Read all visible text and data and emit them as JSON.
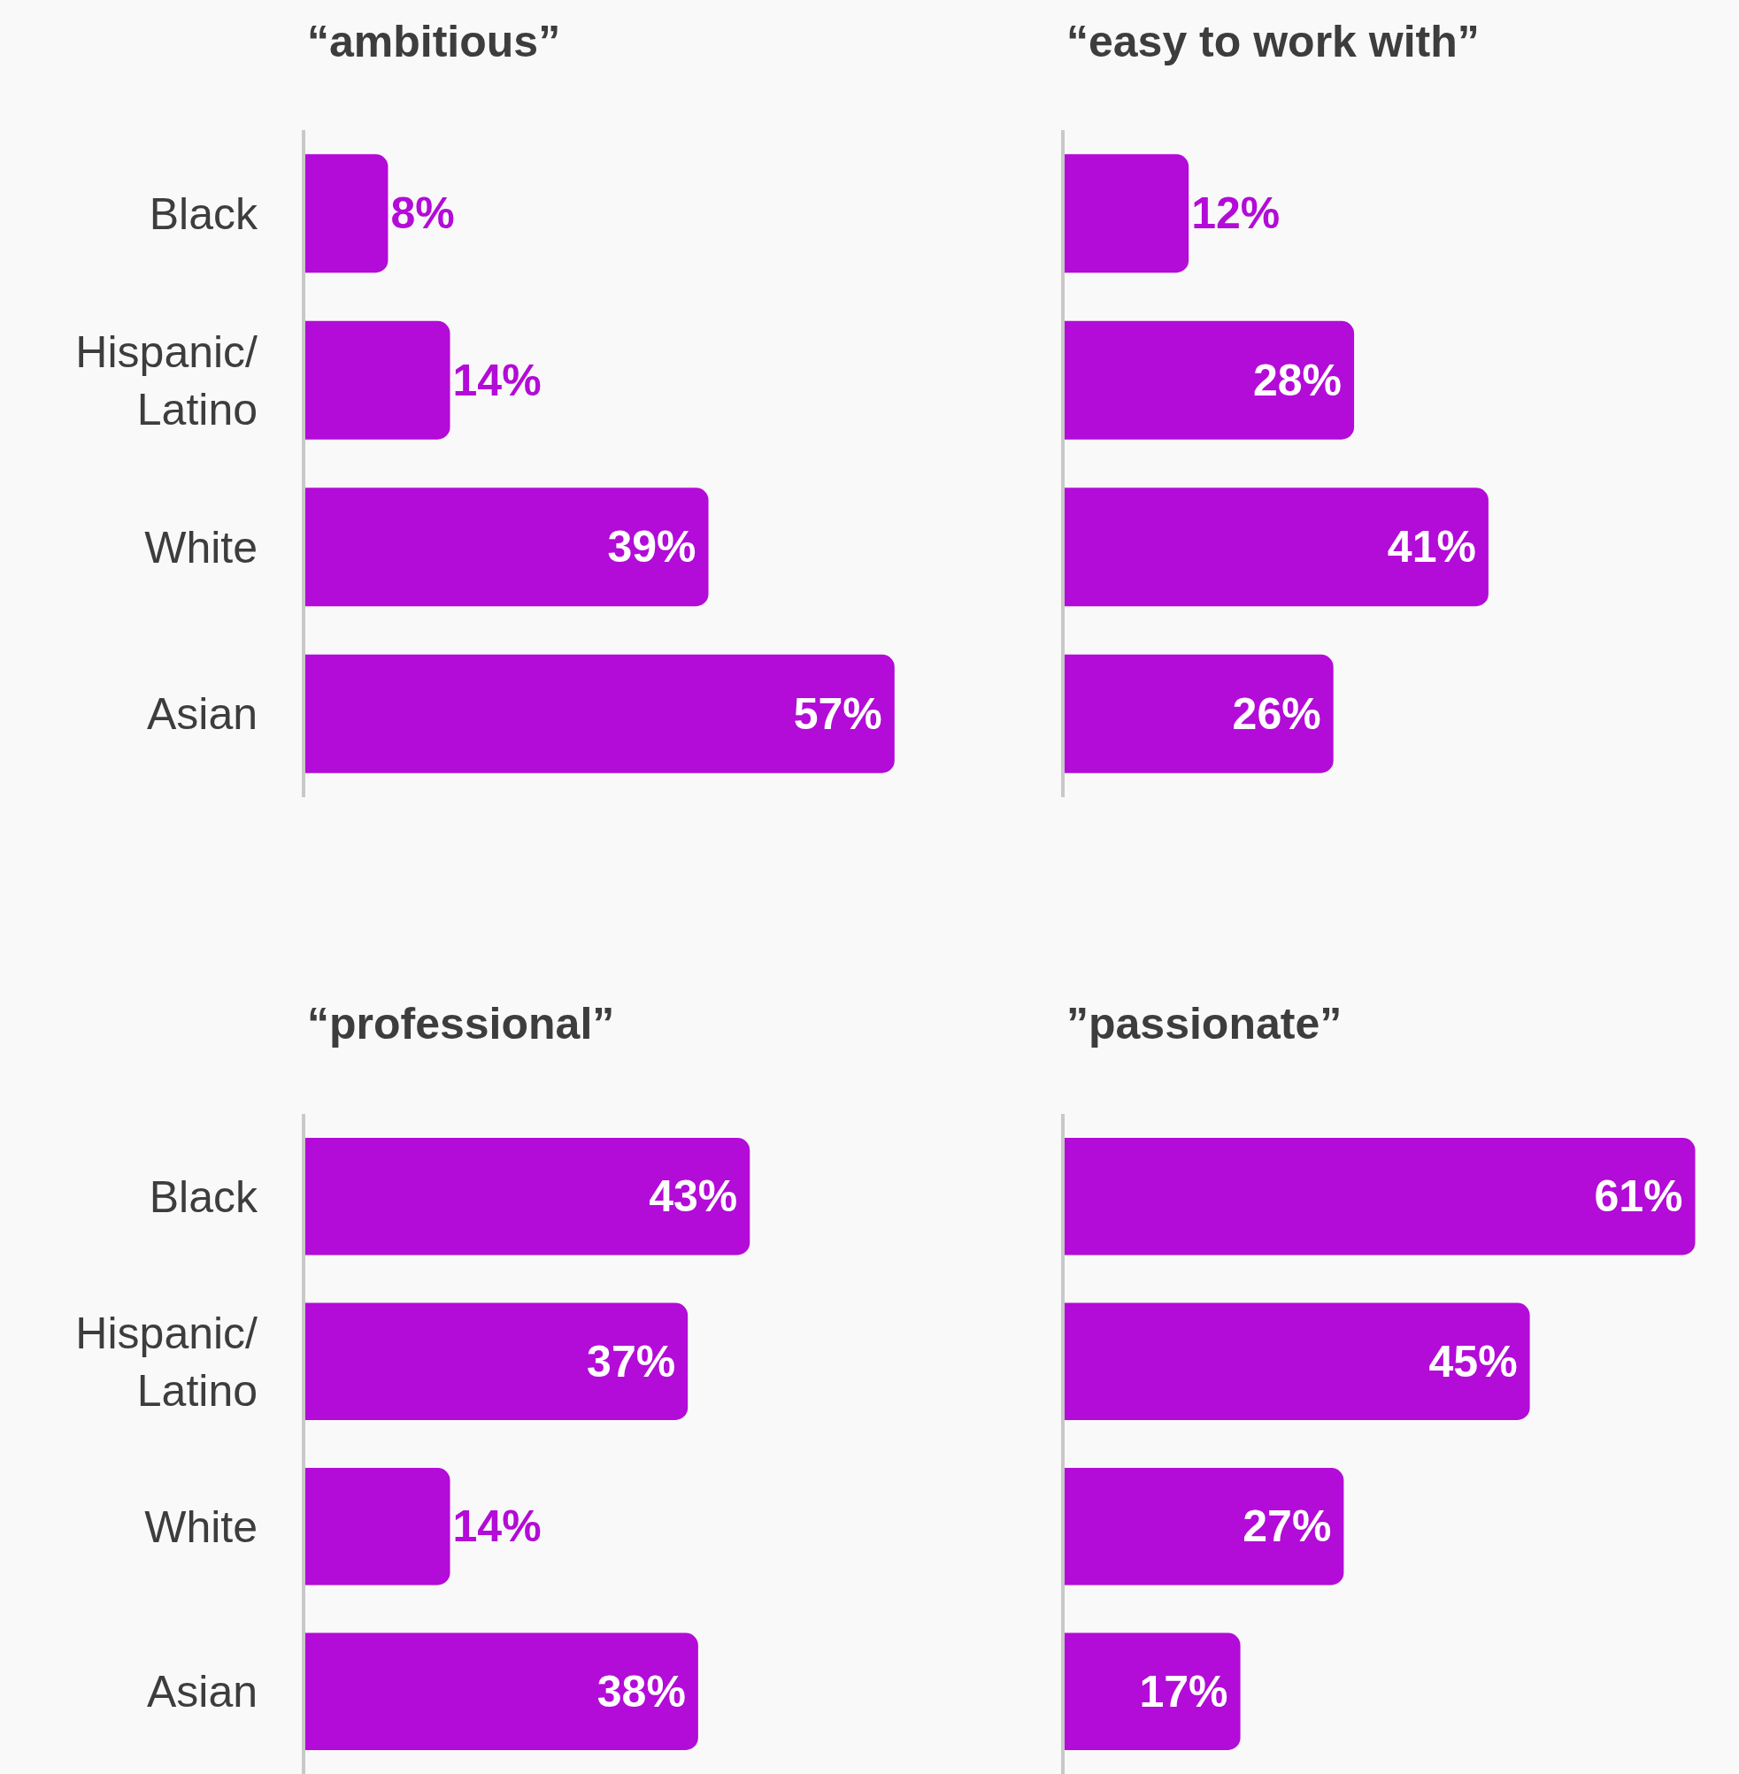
{
  "chart_data": [
    {
      "type": "bar",
      "orientation": "horizontal",
      "title": "“ambitious”",
      "categories": [
        "Black",
        "Hispanic/Latino",
        "White",
        "Asian"
      ],
      "values": [
        8,
        14,
        39,
        57
      ],
      "value_labels": [
        "8%",
        "14%",
        "39%",
        "57%"
      ],
      "color": "#b30bd8",
      "tick_labels": "y"
    },
    {
      "type": "bar",
      "orientation": "horizontal",
      "title": "“easy to work with”",
      "categories": [
        null,
        null,
        null,
        null
      ],
      "values": [
        12,
        28,
        41,
        26
      ],
      "value_labels": [
        "12%",
        "28%",
        "41%",
        "26%"
      ],
      "color": "#b30bd8",
      "tick_labels": false
    },
    {
      "type": "bar",
      "orientation": "horizontal",
      "title": "“professional”",
      "categories": [
        "Black",
        "Hispanic/Latino",
        "White",
        "Asian"
      ],
      "values": [
        43,
        37,
        14,
        38
      ],
      "value_labels": [
        "43%",
        "37%",
        "14%",
        "38%"
      ],
      "color": "#b30bd8",
      "tick_labels": "y"
    },
    {
      "type": "bar",
      "orientation": "horizontal",
      "title": "”passionate”",
      "categories": [
        null,
        null,
        null,
        null
      ],
      "values": [
        61,
        45,
        27,
        17
      ],
      "value_labels": [
        "61%",
        "45%",
        "27%",
        "17%"
      ],
      "color": "#b30bd8",
      "tick_labels": false
    }
  ]
}
